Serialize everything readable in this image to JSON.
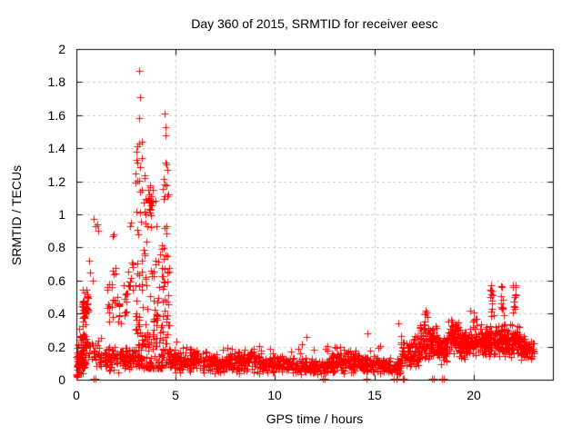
{
  "window": {
    "background": "#ffffff"
  },
  "chart_data": {
    "type": "scatter",
    "title": "Day 360 of 2015, SRMTID for receiver eesc",
    "xlabel": "GPS time / hours",
    "ylabel": "SRMTID / TECUs",
    "xlim": [
      0,
      24
    ],
    "ylim": [
      0,
      2
    ],
    "xticks": {
      "values": [
        0,
        5,
        10,
        15,
        20
      ],
      "labels": [
        "0",
        "5",
        "10",
        "15",
        "20"
      ]
    },
    "yticks": {
      "values": [
        0,
        0.2,
        0.4,
        0.6,
        0.8,
        1,
        1.2,
        1.4,
        1.6,
        1.8,
        2
      ],
      "labels": [
        "0",
        "0.2",
        "0.4",
        "0.6",
        "0.8",
        "1",
        "1.2",
        "1.4",
        "1.6",
        "1.8",
        "2"
      ]
    },
    "grid": true,
    "legend": null,
    "marker": "plus",
    "marker_color": "#ff0000",
    "grid_color": "#b3b3b3",
    "axis_color": "#000000",
    "text_color": "#000000",
    "series": [
      {
        "name": "SRMTID",
        "cluster_format": "[x_start,x_end,count,dist,a,b,k] ; dist 't'=triangular(center a, halfspread b), dist 'p'=power(min a, max b, exponent k)",
        "clusters": [
          [
            0.02,
            0.45,
            85,
            "t",
            0.11,
            0.08
          ],
          [
            0.05,
            0.55,
            30,
            "t",
            0.22,
            0.1
          ],
          [
            0.28,
            0.62,
            45,
            "t",
            0.44,
            0.13
          ],
          [
            0.5,
            1.25,
            30,
            "t",
            0.15,
            0.11
          ],
          [
            1.2,
            2.35,
            70,
            "t",
            0.13,
            0.09
          ],
          [
            1.55,
            1.68,
            8,
            "t",
            0.45,
            0.15
          ],
          [
            1.78,
            1.97,
            9,
            "t",
            0.52,
            0.22
          ],
          [
            2.05,
            2.25,
            9,
            "t",
            0.42,
            0.14
          ],
          [
            2.35,
            2.55,
            11,
            "t",
            0.47,
            0.15
          ],
          [
            2.6,
            2.85,
            12,
            "t",
            0.6,
            0.2
          ],
          [
            2.3,
            3.0,
            50,
            "t",
            0.12,
            0.08
          ],
          [
            2.95,
            3.35,
            75,
            "p",
            0.08,
            1.5,
            2.2
          ],
          [
            3.35,
            4.05,
            100,
            "p",
            0.07,
            1.25,
            2.4
          ],
          [
            3.6,
            3.85,
            16,
            "t",
            1.08,
            0.1
          ],
          [
            4.05,
            4.35,
            40,
            "p",
            0.07,
            0.85,
            2.2
          ],
          [
            4.35,
            4.68,
            55,
            "p",
            0.09,
            1.35,
            2.0
          ],
          [
            4.68,
            5.0,
            30,
            "t",
            0.13,
            0.08
          ],
          [
            5.0,
            6.6,
            110,
            "t",
            0.11,
            0.075
          ],
          [
            6.6,
            8.2,
            110,
            "t",
            0.1,
            0.07
          ],
          [
            8.2,
            9.4,
            90,
            "t",
            0.11,
            0.075
          ],
          [
            9.4,
            11.0,
            110,
            "t",
            0.09,
            0.06
          ],
          [
            11.0,
            12.6,
            110,
            "t",
            0.08,
            0.055
          ],
          [
            12.6,
            13.6,
            80,
            "t",
            0.1,
            0.07
          ],
          [
            13.6,
            14.4,
            70,
            "t",
            0.11,
            0.075
          ],
          [
            14.4,
            15.2,
            70,
            "t",
            0.09,
            0.06
          ],
          [
            15.2,
            16.35,
            85,
            "t",
            0.08,
            0.055
          ],
          [
            5.0,
            16.3,
            40,
            "t",
            0.175,
            0.05
          ],
          [
            16.35,
            17.3,
            85,
            "t",
            0.17,
            0.1
          ],
          [
            17.3,
            18.15,
            95,
            "t",
            0.22,
            0.12
          ],
          [
            17.5,
            17.75,
            10,
            "p",
            0.3,
            0.42,
            1.0
          ],
          [
            18.15,
            18.7,
            60,
            "t",
            0.18,
            0.1
          ],
          [
            18.7,
            19.25,
            55,
            "t",
            0.27,
            0.12
          ],
          [
            19.25,
            20.35,
            120,
            "t",
            0.21,
            0.1
          ],
          [
            19.85,
            20.15,
            10,
            "p",
            0.3,
            0.43,
            1.0
          ],
          [
            20.35,
            21.15,
            95,
            "t",
            0.24,
            0.11
          ],
          [
            20.82,
            21.02,
            12,
            "p",
            0.38,
            0.575,
            1.0
          ],
          [
            21.15,
            21.65,
            65,
            "t",
            0.24,
            0.11
          ],
          [
            21.38,
            21.52,
            10,
            "p",
            0.38,
            0.565,
            1.0
          ],
          [
            21.65,
            22.35,
            85,
            "t",
            0.23,
            0.11
          ],
          [
            21.95,
            22.12,
            12,
            "p",
            0.38,
            0.575,
            1.0
          ],
          [
            22.35,
            23.05,
            75,
            "t",
            0.19,
            0.08
          ]
        ],
        "points": [
          [
            0.0,
            0.02
          ],
          [
            0.02,
            0.035
          ],
          [
            0.04,
            0.015
          ],
          [
            0.06,
            0.03
          ],
          [
            0.85,
            0.005
          ],
          [
            0.98,
            0.005
          ],
          [
            0.62,
            0.72
          ],
          [
            0.7,
            0.65
          ],
          [
            0.82,
            0.6
          ],
          [
            0.87,
            0.97
          ],
          [
            0.95,
            0.93
          ],
          [
            1.05,
            0.94
          ],
          [
            1.08,
            0.9
          ],
          [
            1.82,
            0.87
          ],
          [
            1.86,
            0.88
          ],
          [
            1.84,
            0.66
          ],
          [
            1.9,
            0.64
          ],
          [
            2.7,
            0.93
          ],
          [
            2.75,
            0.95
          ],
          [
            2.98,
            1.25
          ],
          [
            3.05,
            1.41
          ],
          [
            3.16,
            1.87
          ],
          [
            3.17,
            1.58
          ],
          [
            3.2,
            1.71
          ],
          [
            3.28,
            1.44
          ],
          [
            4.42,
            1.18
          ],
          [
            4.45,
            1.61
          ],
          [
            4.47,
            1.48
          ],
          [
            4.5,
            1.53
          ],
          [
            4.55,
            1.3
          ],
          [
            4.6,
            1.27
          ],
          [
            5.02,
            0.23
          ],
          [
            11.6,
            0.26
          ],
          [
            14.65,
            0.28
          ],
          [
            16.2,
            0.34
          ],
          [
            12.42,
            0.005
          ],
          [
            12.5,
            0.005
          ],
          [
            14.6,
            0.005
          ],
          [
            16.0,
            0.005
          ],
          [
            16.1,
            0.005
          ],
          [
            16.42,
            0.005
          ],
          [
            16.5,
            0.005
          ],
          [
            17.9,
            0.005
          ],
          [
            17.98,
            0.005
          ],
          [
            18.42,
            0.005
          ],
          [
            18.5,
            0.005
          ],
          [
            20.9,
            0.57
          ],
          [
            21.45,
            0.56
          ],
          [
            22.0,
            0.57
          ],
          [
            22.05,
            0.47
          ]
        ]
      }
    ]
  }
}
